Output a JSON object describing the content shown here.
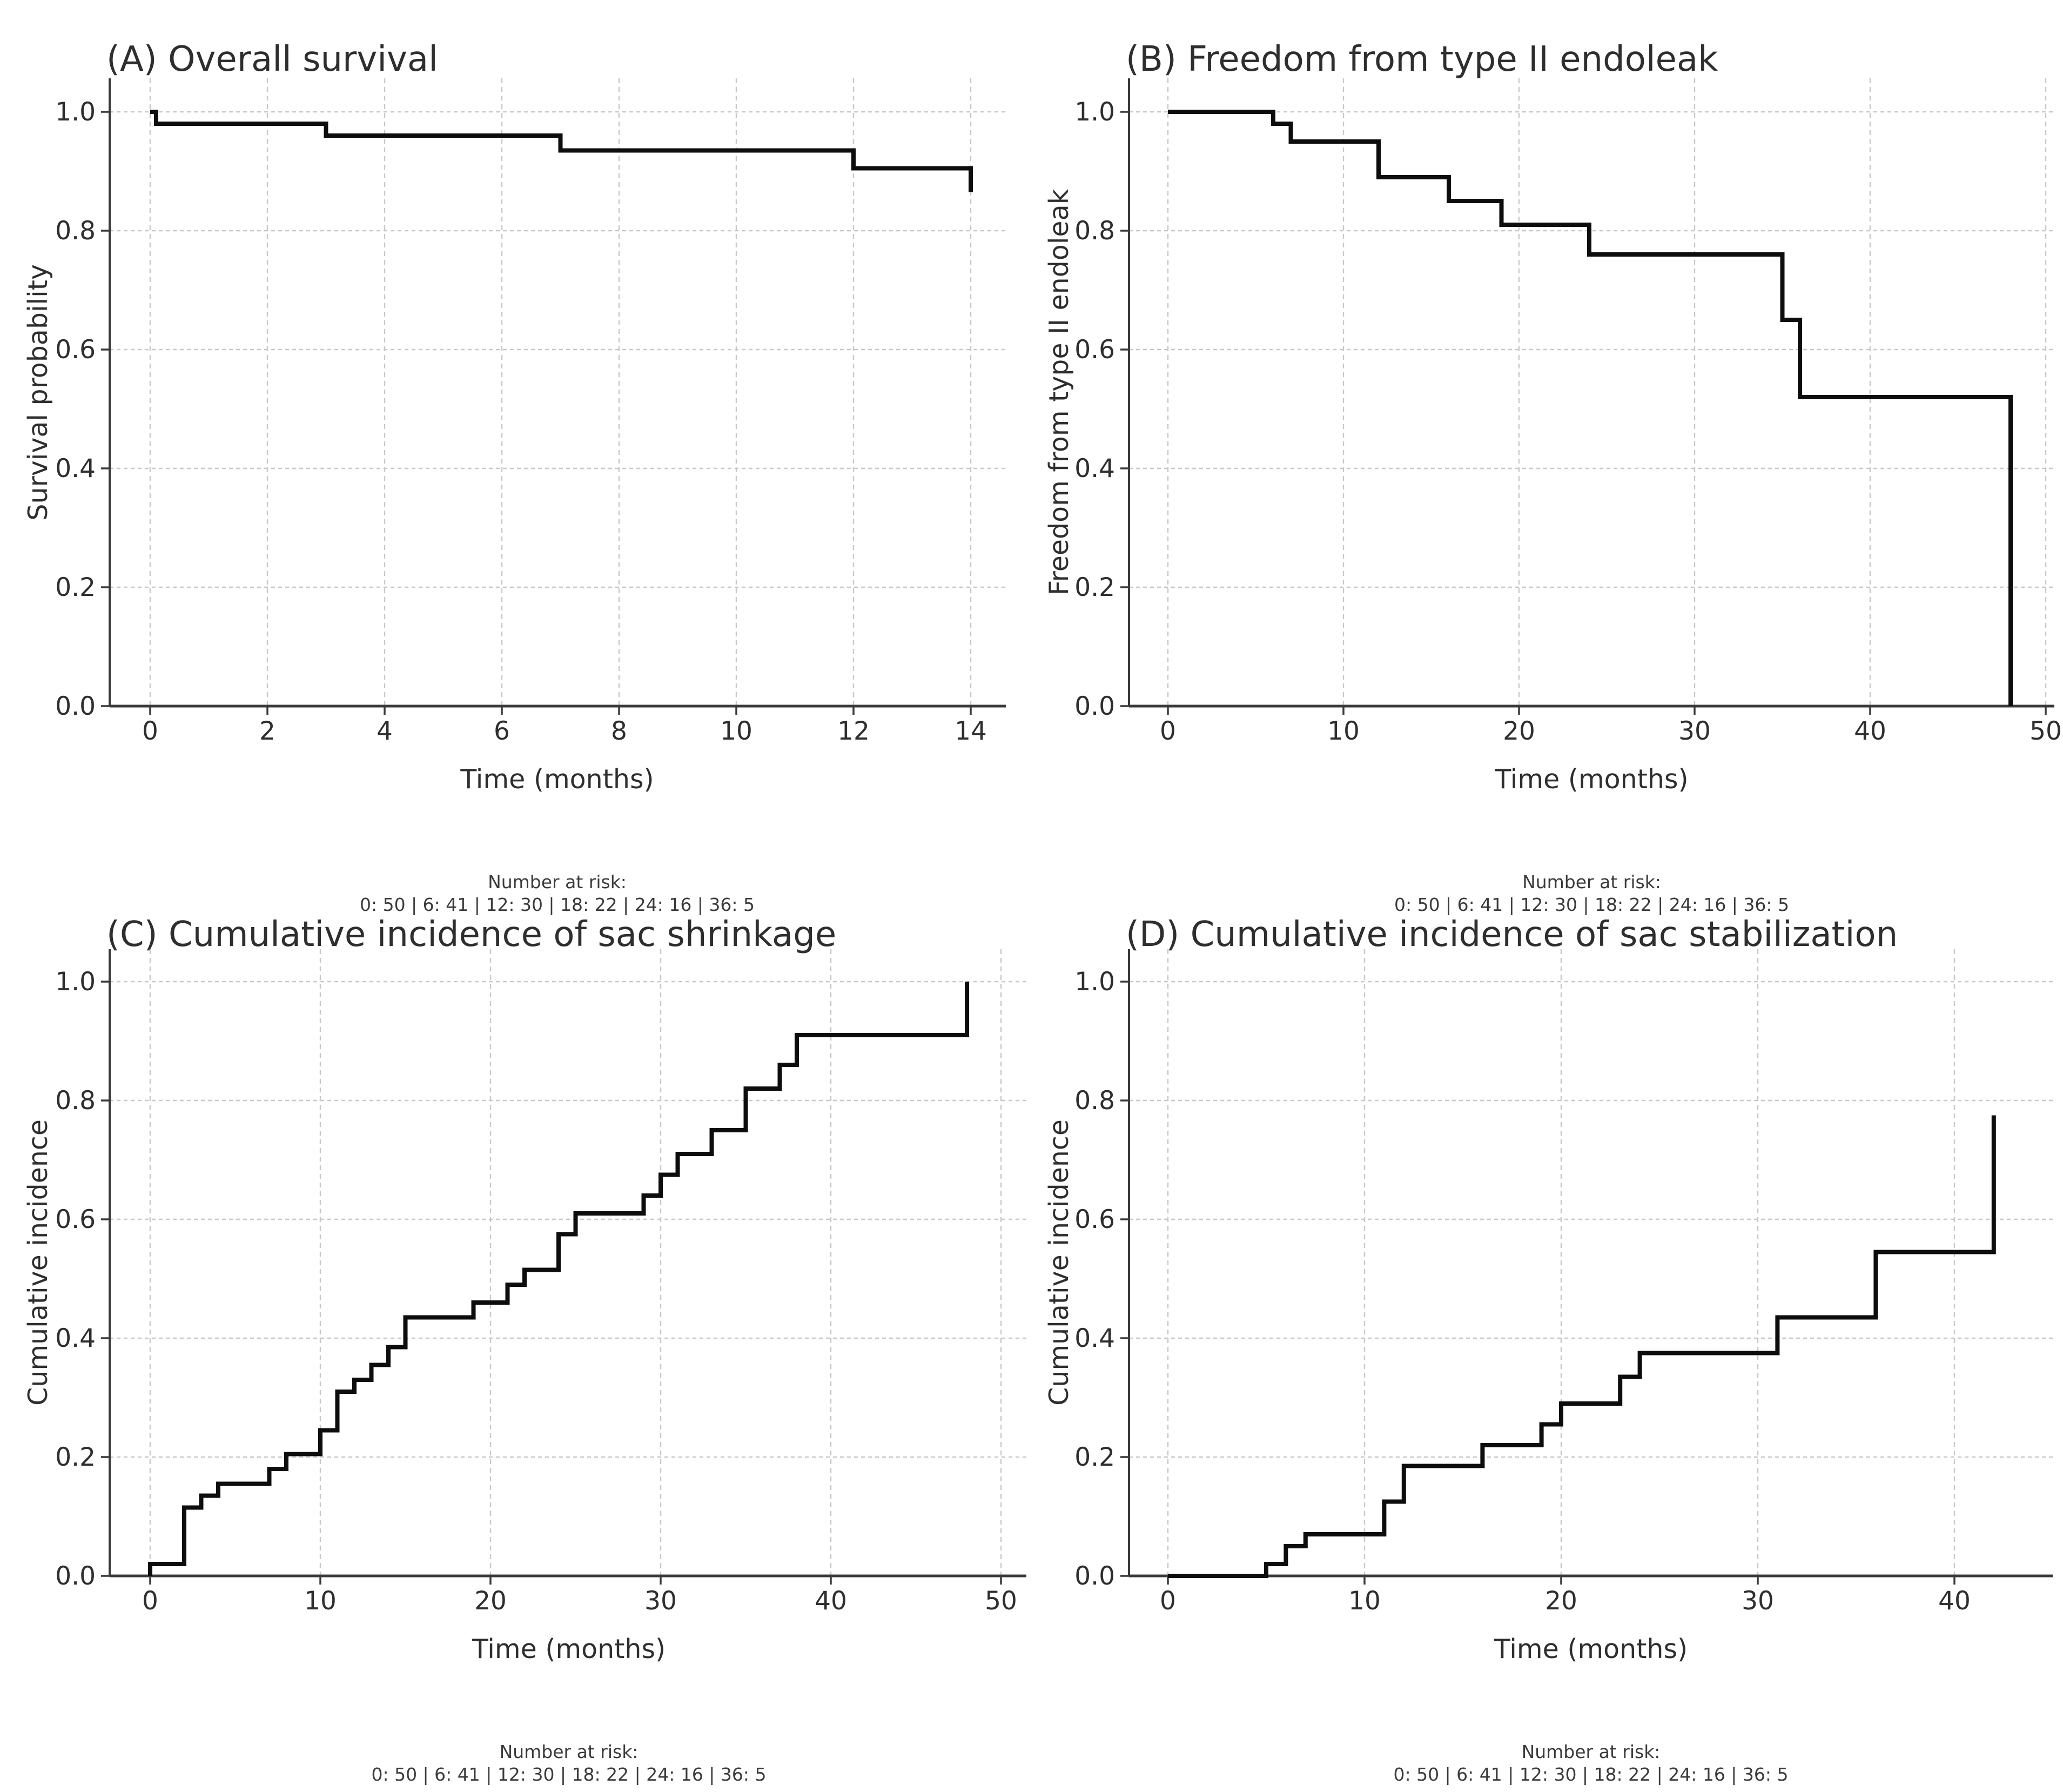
{
  "figure": {
    "background": "#ffffff",
    "text_color": "#2e2e2e",
    "curve_color": "#0d0d0d",
    "grid_color": "#c8c8c8",
    "spine_color": "#3a3a3a",
    "xlabel": "Time (months)"
  },
  "risk_table": {
    "label": "Number at risk:",
    "values": "0: 50 | 6: 41 | 12: 30 | 18: 22 | 24: 16 | 36: 5"
  },
  "chart_data": [
    {
      "id": "A",
      "type": "line",
      "subtype": "kaplan-meier-step",
      "title": "(A) Overall survival",
      "xlabel": "Time (months)",
      "ylabel": "Survival probability",
      "x_ticks": [
        0,
        2,
        4,
        6,
        8,
        10,
        12,
        14
      ],
      "y_ticks": [
        0.0,
        0.2,
        0.4,
        0.6,
        0.8,
        1.0
      ],
      "xlim": [
        0,
        14.6
      ],
      "ylim": [
        0.0,
        1.05
      ],
      "grid": true,
      "legend": "none",
      "points": [
        [
          0,
          1.0
        ],
        [
          0.1,
          1.0
        ],
        [
          0.1,
          0.98
        ],
        [
          3,
          0.98
        ],
        [
          3,
          0.96
        ],
        [
          7,
          0.96
        ],
        [
          7,
          0.935
        ],
        [
          12,
          0.935
        ],
        [
          12,
          0.905
        ],
        [
          14,
          0.905
        ],
        [
          14,
          0.865
        ]
      ],
      "risk_label": "Number at risk:",
      "risk_values": "0: 50 | 6: 41 | 12: 30 | 18: 22 | 24: 16 | 36: 5"
    },
    {
      "id": "B",
      "type": "line",
      "subtype": "kaplan-meier-step",
      "title": "(B) Freedom from type II endoleak",
      "xlabel": "Time (months)",
      "ylabel": "Freedom from type II endoleak",
      "x_ticks": [
        0,
        10,
        20,
        30,
        40,
        50
      ],
      "y_ticks": [
        0.0,
        0.2,
        0.4,
        0.6,
        0.8,
        1.0
      ],
      "xlim": [
        0,
        50.4
      ],
      "ylim": [
        0.0,
        1.05
      ],
      "grid": true,
      "legend": "none",
      "points": [
        [
          0,
          1.0
        ],
        [
          6,
          1.0
        ],
        [
          6,
          0.98
        ],
        [
          7,
          0.98
        ],
        [
          7,
          0.95
        ],
        [
          12,
          0.95
        ],
        [
          12,
          0.89
        ],
        [
          16,
          0.89
        ],
        [
          16,
          0.85
        ],
        [
          19,
          0.85
        ],
        [
          19,
          0.81
        ],
        [
          24,
          0.81
        ],
        [
          24,
          0.76
        ],
        [
          35,
          0.76
        ],
        [
          35,
          0.65
        ],
        [
          36,
          0.65
        ],
        [
          36,
          0.52
        ],
        [
          48,
          0.52
        ],
        [
          48,
          0.0
        ]
      ],
      "risk_label": "Number at risk:",
      "risk_values": "0: 50 | 6: 41 | 12: 30 | 18: 22 | 24: 16 | 36: 5"
    },
    {
      "id": "C",
      "type": "line",
      "subtype": "cumulative-incidence-step",
      "title": "(C) Cumulative incidence of sac shrinkage",
      "xlabel": "Time (months)",
      "ylabel": "Cumulative incidence",
      "x_ticks": [
        0,
        10,
        20,
        30,
        40,
        50
      ],
      "y_ticks": [
        0.0,
        0.2,
        0.4,
        0.6,
        0.8,
        1.0
      ],
      "xlim": [
        0,
        51.5
      ],
      "ylim": [
        0.0,
        1.05
      ],
      "grid": true,
      "legend": "none",
      "points": [
        [
          0,
          0.0
        ],
        [
          0,
          0.02
        ],
        [
          2,
          0.02
        ],
        [
          2,
          0.115
        ],
        [
          3,
          0.115
        ],
        [
          3,
          0.135
        ],
        [
          4,
          0.135
        ],
        [
          4,
          0.155
        ],
        [
          7,
          0.155
        ],
        [
          7,
          0.18
        ],
        [
          8,
          0.18
        ],
        [
          8,
          0.205
        ],
        [
          10,
          0.205
        ],
        [
          10,
          0.245
        ],
        [
          11,
          0.245
        ],
        [
          11,
          0.31
        ],
        [
          12,
          0.31
        ],
        [
          12,
          0.33
        ],
        [
          13,
          0.33
        ],
        [
          13,
          0.355
        ],
        [
          14,
          0.355
        ],
        [
          14,
          0.385
        ],
        [
          15,
          0.385
        ],
        [
          15,
          0.435
        ],
        [
          19,
          0.435
        ],
        [
          19,
          0.46
        ],
        [
          21,
          0.46
        ],
        [
          21,
          0.49
        ],
        [
          22,
          0.49
        ],
        [
          22,
          0.515
        ],
        [
          24,
          0.515
        ],
        [
          24,
          0.575
        ],
        [
          25,
          0.575
        ],
        [
          25,
          0.61
        ],
        [
          29,
          0.61
        ],
        [
          29,
          0.64
        ],
        [
          30,
          0.64
        ],
        [
          30,
          0.675
        ],
        [
          31,
          0.675
        ],
        [
          31,
          0.71
        ],
        [
          33,
          0.71
        ],
        [
          33,
          0.75
        ],
        [
          35,
          0.75
        ],
        [
          35,
          0.82
        ],
        [
          37,
          0.82
        ],
        [
          37,
          0.86
        ],
        [
          38,
          0.86
        ],
        [
          38,
          0.91
        ],
        [
          48,
          0.91
        ],
        [
          48,
          1.0
        ]
      ],
      "risk_label": "Number at risk:",
      "risk_values": "0: 50 | 6: 41 | 12: 30 | 18: 22 | 24: 16 | 36: 5"
    },
    {
      "id": "D",
      "type": "line",
      "subtype": "cumulative-incidence-step",
      "title": "(D) Cumulative incidence of sac stabilization",
      "xlabel": "Time (months)",
      "ylabel": "Cumulative incidence",
      "x_ticks": [
        0,
        10,
        20,
        30,
        40
      ],
      "y_ticks": [
        0.0,
        0.2,
        0.4,
        0.6,
        0.8,
        1.0
      ],
      "xlim": [
        0,
        45
      ],
      "ylim": [
        0.0,
        1.05
      ],
      "grid": true,
      "legend": "none",
      "points": [
        [
          0,
          0.0
        ],
        [
          5,
          0.0
        ],
        [
          5,
          0.02
        ],
        [
          6,
          0.02
        ],
        [
          6,
          0.05
        ],
        [
          7,
          0.05
        ],
        [
          7,
          0.07
        ],
        [
          11,
          0.07
        ],
        [
          11,
          0.125
        ],
        [
          12,
          0.125
        ],
        [
          12,
          0.185
        ],
        [
          16,
          0.185
        ],
        [
          16,
          0.22
        ],
        [
          19,
          0.22
        ],
        [
          19,
          0.255
        ],
        [
          20,
          0.255
        ],
        [
          20,
          0.29
        ],
        [
          23,
          0.29
        ],
        [
          23,
          0.335
        ],
        [
          24,
          0.335
        ],
        [
          24,
          0.375
        ],
        [
          31,
          0.375
        ],
        [
          31,
          0.435
        ],
        [
          36,
          0.435
        ],
        [
          36,
          0.545
        ],
        [
          42,
          0.545
        ],
        [
          42,
          0.775
        ]
      ],
      "risk_label": "Number at risk:",
      "risk_values": "0: 50 | 6: 41 | 12: 30 | 18: 22 | 24: 16 | 36: 5"
    }
  ]
}
